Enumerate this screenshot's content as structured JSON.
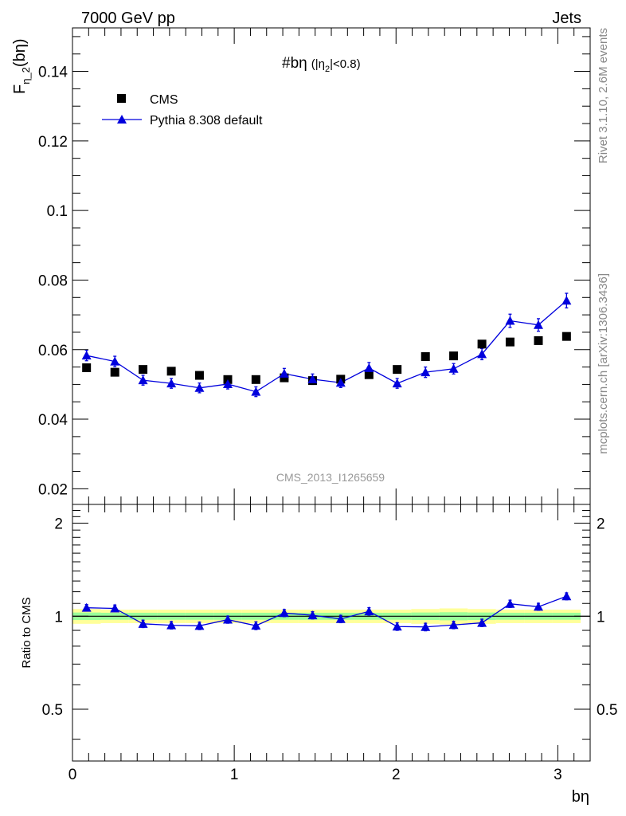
{
  "header": {
    "left": "7000 GeV pp",
    "right": "Jets"
  },
  "side_labels": {
    "top": "Rivet 3.1.10,  2.6M events",
    "bottom": "mcplots.cern.ch [arXiv:1306.3436]"
  },
  "watermark": "CMS_2013_I1265659",
  "chart_data": [
    {
      "type": "scatter",
      "title": "#bη (|η₂|<0.8)",
      "title_parts": {
        "main": "#bη",
        "open": "(|η",
        "sub": "2",
        "close": "|<0.8)"
      },
      "ylabel": "F_η2(bη)",
      "ylabel_parts": {
        "main": "F",
        "sub": "η_2",
        "rest": "(bη)"
      },
      "xlabel": "bη",
      "xlim": [
        0,
        3.2
      ],
      "ylim": [
        0.0155,
        0.1525
      ],
      "yticks": [
        0.02,
        0.04,
        0.06,
        0.08,
        0.1,
        0.12,
        0.14
      ],
      "ytick_labels": [
        "0.02",
        "0.04",
        "0.06",
        "0.08",
        "0.1",
        "0.12",
        "0.14"
      ],
      "legend": {
        "placement": "top-left",
        "entries": [
          "CMS",
          "Pythia 8.308 default"
        ]
      },
      "x": [
        0.087,
        0.262,
        0.436,
        0.611,
        0.785,
        0.96,
        1.134,
        1.309,
        1.484,
        1.658,
        1.833,
        2.007,
        2.182,
        2.356,
        2.531,
        2.705,
        2.88,
        3.054
      ],
      "series": [
        {
          "name": "CMS",
          "marker": "square",
          "color": "#000000",
          "values": [
            0.0548,
            0.0535,
            0.0543,
            0.0538,
            0.0526,
            0.0514,
            0.0514,
            0.0519,
            0.0511,
            0.0515,
            0.0528,
            0.0543,
            0.058,
            0.0582,
            0.0616,
            0.0622,
            0.0626,
            0.0638
          ]
        },
        {
          "name": "Pythia 8.308 default",
          "marker": "triangle",
          "color": "#0000dd",
          "values": [
            0.0583,
            0.0566,
            0.0512,
            0.0503,
            0.049,
            0.0501,
            0.0479,
            0.0531,
            0.0515,
            0.0505,
            0.0547,
            0.0503,
            0.0535,
            0.0545,
            0.0587,
            0.0683,
            0.0671,
            0.0741
          ],
          "errors": [
            0.0015,
            0.0015,
            0.0014,
            0.0014,
            0.0014,
            0.0014,
            0.0014,
            0.0015,
            0.0015,
            0.0014,
            0.0016,
            0.0014,
            0.0015,
            0.0015,
            0.0016,
            0.0019,
            0.0018,
            0.0021
          ]
        }
      ]
    },
    {
      "type": "scatter",
      "ylabel": "Ratio to CMS",
      "xlabel": "bη",
      "xlim": [
        0,
        3.2
      ],
      "ylim": [
        0.34,
        2.3
      ],
      "y_scale": "log",
      "yticks": [
        0.5,
        1,
        2
      ],
      "ytick_labels": [
        "0.5",
        "1",
        "2"
      ],
      "xticks": [
        0,
        1,
        2,
        3
      ],
      "xtick_labels": [
        "0",
        "1",
        "2",
        "3"
      ],
      "reference_line": 1,
      "bands": {
        "yellow": {
          "color": "#ffff99",
          "half_width": [
            0.055,
            0.05,
            0.05,
            0.05,
            0.05,
            0.05,
            0.05,
            0.05,
            0.05,
            0.05,
            0.05,
            0.05,
            0.055,
            0.06,
            0.055,
            0.05,
            0.05,
            0.05
          ]
        },
        "green": {
          "color": "#99ff99",
          "half_width": [
            0.028,
            0.026,
            0.026,
            0.026,
            0.026,
            0.026,
            0.026,
            0.026,
            0.026,
            0.026,
            0.026,
            0.026,
            0.028,
            0.03,
            0.028,
            0.026,
            0.026,
            0.026
          ]
        }
      },
      "series": [
        {
          "name": "Pythia 8.308 default",
          "marker": "triangle",
          "color": "#0000dd",
          "values": [
            1.065,
            1.06,
            0.945,
            0.935,
            0.931,
            0.975,
            0.932,
            1.024,
            1.007,
            0.98,
            1.037,
            0.926,
            0.923,
            0.937,
            0.952,
            1.097,
            1.073,
            1.16
          ],
          "errors": [
            0.026,
            0.027,
            0.026,
            0.026,
            0.026,
            0.026,
            0.027,
            0.027,
            0.027,
            0.027,
            0.029,
            0.026,
            0.026,
            0.026,
            0.026,
            0.03,
            0.028,
            0.03
          ]
        }
      ]
    }
  ]
}
